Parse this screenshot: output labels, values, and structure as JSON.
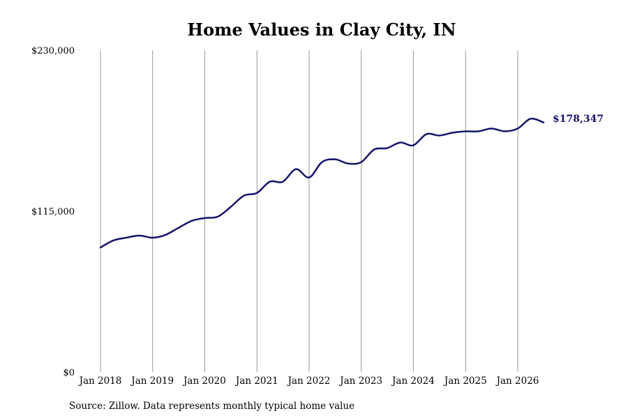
{
  "chart_data": {
    "type": "line",
    "title": "Home Values in Clay City, IN",
    "xlabel": "",
    "ylabel": "",
    "ylim": [
      0,
      230000
    ],
    "y_ticks": [
      {
        "value": 0,
        "label": "$0"
      },
      {
        "value": 115000,
        "label": "$115,000"
      },
      {
        "value": 230000,
        "label": "$230,000"
      }
    ],
    "x_ticks": [
      {
        "date": "2018-01",
        "label": "Jan 2018"
      },
      {
        "date": "2019-01",
        "label": "Jan 2019"
      },
      {
        "date": "2020-01",
        "label": "Jan 2020"
      },
      {
        "date": "2021-01",
        "label": "Jan 2021"
      },
      {
        "date": "2022-01",
        "label": "Jan 2022"
      },
      {
        "date": "2023-01",
        "label": "Jan 2023"
      },
      {
        "date": "2024-01",
        "label": "Jan 2024"
      },
      {
        "date": "2025-01",
        "label": "Jan 2025"
      },
      {
        "date": "2026-01",
        "label": "Jan 2026"
      }
    ],
    "vertical_grid": true,
    "horizontal_grid": false,
    "series": [
      {
        "color": "#14146b",
        "end_label": "$178,347",
        "x": [
          "2018-01",
          "2018-04",
          "2018-07",
          "2018-10",
          "2019-01",
          "2019-04",
          "2019-07",
          "2019-10",
          "2020-01",
          "2020-04",
          "2020-07",
          "2020-10",
          "2021-01",
          "2021-04",
          "2021-07",
          "2021-10",
          "2022-01",
          "2022-04",
          "2022-07",
          "2022-10",
          "2023-01",
          "2023-04",
          "2023-07",
          "2023-10",
          "2024-01",
          "2024-04",
          "2024-07",
          "2024-10",
          "2025-01",
          "2025-04",
          "2025-07",
          "2025-10",
          "2026-01",
          "2026-04",
          "2026-07"
        ],
        "values": [
          89000,
          94000,
          96000,
          97500,
          96000,
          98000,
          103000,
          108000,
          110000,
          111000,
          118000,
          126000,
          128000,
          136000,
          136000,
          145000,
          139000,
          150000,
          152000,
          149000,
          150000,
          159000,
          160000,
          164000,
          162000,
          170000,
          169000,
          171000,
          172000,
          172000,
          174000,
          172000,
          174000,
          181000,
          178347
        ]
      }
    ]
  },
  "footer": {
    "source": "Source: Zillow. Data represents monthly typical home value"
  }
}
